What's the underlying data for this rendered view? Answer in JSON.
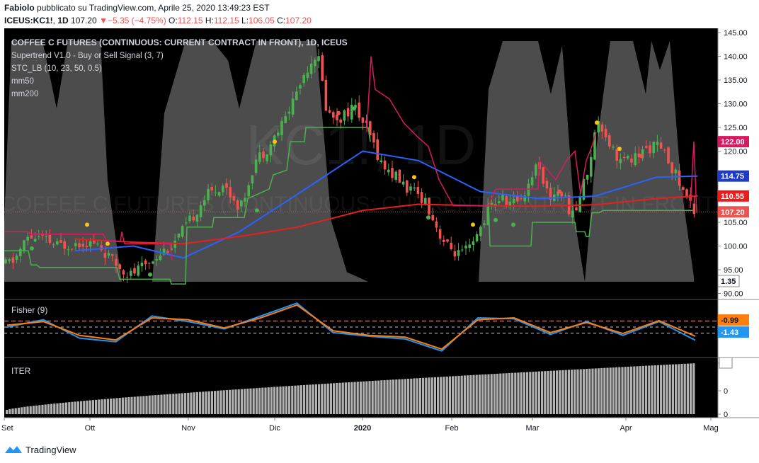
{
  "header": {
    "author": "Fabiolo",
    "published_text": "pubblicato su TradingView.com, Aprile 25, 2020 13:49:23 EST",
    "symbol": "ICEUS:KC1!",
    "interval": "1D",
    "last": "107.20",
    "change": "−5.35 (−4.75%)",
    "o_label": "O:",
    "o_value": "112.15",
    "h_label": "H:",
    "h_value": "112.15",
    "l_label": "L:",
    "l_value": "106.05",
    "c_label": "C:",
    "c_value": "107.20"
  },
  "main_pane": {
    "title": "COFFEE C FUTURES (CONTINUOUS: CURRENT CONTRACT IN FRONT), 1D, ICEUS",
    "indicators": [
      "Supertrend V1.0 - Buy or Sell Signal (3, 7)",
      "STC_LB (10, 23, 50, 0.5)",
      "mm50",
      "mm200"
    ],
    "watermark_big": "KC1!, 1D",
    "watermark_small": "COFFEE C FUTURES (CONTINUOUS: CURRENT CONTRACT IN FRONT)",
    "price_ticks": [
      "145.00",
      "140.00",
      "135.00",
      "130.00",
      "125.00",
      "120.00",
      "115.00",
      "110.00",
      "105.00",
      "100.00",
      "95.00",
      "90.00"
    ],
    "badges": {
      "supertrend": "122.00",
      "mm50": "114.75",
      "mm200": "110.55",
      "last": "107.20",
      "stc": "1.35"
    }
  },
  "fisher_pane": {
    "title": "Fisher (9)",
    "badges": {
      "trigger": "-0.99",
      "fisher": "-1.43"
    }
  },
  "iter_pane": {
    "title": "ITER",
    "ticks": [
      "0",
      "0",
      "0"
    ]
  },
  "time_axis": [
    "Set",
    "Ott",
    "Nov",
    "Dic",
    "2020",
    "Feb",
    "Mar",
    "Apr",
    "Mag"
  ],
  "footer": {
    "brand": "TradingView"
  },
  "colors": {
    "background": "#000000",
    "up": "#4caf50",
    "down": "#ef5350",
    "mm50": "#2962ff",
    "mm200": "#e91e1e",
    "supertrend_up": "#4caf50",
    "supertrend_down": "#d81b60",
    "stc_fill": "#8a8a8a",
    "fisher": "#2196f3",
    "trigger": "#ff7f0e",
    "iter_bars": "#b2b2b2"
  },
  "chart_data": [
    {
      "type": "candlestick",
      "title": "COFFEE C FUTURES (CONTINUOUS: CURRENT CONTRACT IN FRONT), 1D, ICEUS",
      "ylim": [
        89,
        146
      ],
      "series": [
        {
          "name": "mm50",
          "x": [
            "2019-09-25",
            "2019-10-15",
            "2019-11-01",
            "2019-11-20",
            "2019-12-10",
            "2020-01-01",
            "2020-01-20",
            "2020-02-10",
            "2020-03-01",
            "2020-03-20",
            "2020-04-10",
            "2020-04-24"
          ],
          "values": [
            99.0,
            100.0,
            97.5,
            103.0,
            111.0,
            120.0,
            118.0,
            111.5,
            110.0,
            110.5,
            114.5,
            114.75
          ]
        },
        {
          "name": "mm200",
          "x": [
            "2019-09-25",
            "2019-10-15",
            "2019-11-01",
            "2019-11-20",
            "2019-12-10",
            "2020-01-01",
            "2020-01-20",
            "2020-02-10",
            "2020-03-01",
            "2020-03-20",
            "2020-04-10",
            "2020-04-24"
          ],
          "values": [
            101.5,
            100.8,
            100.5,
            102.0,
            104.0,
            107.5,
            108.8,
            108.5,
            108.4,
            108.7,
            110.0,
            110.55
          ]
        }
      ],
      "ohlc_approx": [
        {
          "x": "2019-09-20",
          "o": 95.5,
          "h": 97,
          "l": 94.5,
          "c": 96
        },
        {
          "x": "2019-10-01",
          "o": 100,
          "h": 104,
          "l": 99,
          "c": 102
        },
        {
          "x": "2019-10-15",
          "o": 98,
          "h": 101,
          "l": 95,
          "c": 96
        },
        {
          "x": "2019-10-22",
          "o": 95,
          "h": 96,
          "l": 93,
          "c": 94
        },
        {
          "x": "2019-11-05",
          "o": 104,
          "h": 110,
          "l": 102,
          "c": 109
        },
        {
          "x": "2019-11-20",
          "o": 115,
          "h": 120,
          "l": 112,
          "c": 118
        },
        {
          "x": "2019-12-05",
          "o": 128,
          "h": 137,
          "l": 125,
          "c": 135
        },
        {
          "x": "2019-12-12",
          "o": 136,
          "h": 143,
          "l": 128,
          "c": 130
        },
        {
          "x": "2019-12-26",
          "o": 126,
          "h": 131,
          "l": 125,
          "c": 128
        },
        {
          "x": "2020-01-10",
          "o": 115,
          "h": 117,
          "l": 113,
          "c": 114
        },
        {
          "x": "2020-01-28",
          "o": 108,
          "h": 109,
          "l": 103,
          "c": 104
        },
        {
          "x": "2020-02-10",
          "o": 98,
          "h": 100,
          "l": 97,
          "c": 99
        },
        {
          "x": "2020-02-25",
          "o": 104,
          "h": 111,
          "l": 103,
          "c": 110
        },
        {
          "x": "2020-03-10",
          "o": 113,
          "h": 120,
          "l": 110,
          "c": 118
        },
        {
          "x": "2020-03-20",
          "o": 110,
          "h": 112,
          "l": 104,
          "c": 106
        },
        {
          "x": "2020-03-26",
          "o": 123,
          "h": 131,
          "l": 121,
          "c": 128
        },
        {
          "x": "2020-04-10",
          "o": 120,
          "h": 122,
          "l": 116,
          "c": 118
        },
        {
          "x": "2020-04-24",
          "o": 112.15,
          "h": 112.15,
          "l": 106.05,
          "c": 107.2
        }
      ]
    },
    {
      "type": "line",
      "title": "Fisher (9)",
      "series": [
        {
          "name": "",
          "values": [
            0.0,
            0.8,
            -1.2,
            -1.6,
            1.2,
            0.6,
            -0.2,
            1.2,
            2.6,
            -0.6,
            -1.0,
            -1.3,
            -2.6,
            1.0,
            0.9,
            -0.8,
            0.6,
            -0.9,
            0.6,
            -1.43
          ]
        },
        {
          "name": "",
          "values": [
            0.2,
            0.6,
            -0.9,
            -1.4,
            1.0,
            0.8,
            -0.1,
            1.0,
            2.4,
            -0.4,
            -0.9,
            -1.1,
            -2.4,
            0.8,
            1.0,
            -0.6,
            0.5,
            -0.7,
            0.7,
            -0.99
          ]
        }
      ]
    },
    {
      "type": "bar",
      "title": "ITER",
      "trend": "increasing from left to right"
    }
  ]
}
